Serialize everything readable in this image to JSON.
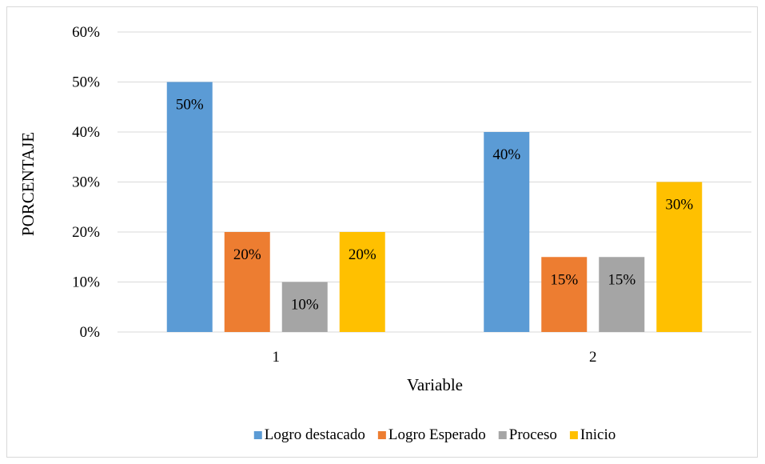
{
  "chart_data": {
    "type": "bar",
    "categories": [
      "1",
      "2"
    ],
    "series": [
      {
        "name": "Logro destacado",
        "values": [
          50,
          40
        ],
        "labels": [
          "50%",
          "40%"
        ],
        "color": "#5b9bd5"
      },
      {
        "name": "Logro Esperado",
        "values": [
          20,
          15
        ],
        "labels": [
          "20%",
          "15%"
        ],
        "color": "#ed7d31"
      },
      {
        "name": "Proceso",
        "values": [
          10,
          15
        ],
        "labels": [
          "10%",
          "15%"
        ],
        "color": "#a5a5a5"
      },
      {
        "name": "Inicio",
        "values": [
          20,
          30
        ],
        "labels": [
          "20%",
          "30%"
        ],
        "color": "#ffc000"
      }
    ],
    "xlabel": "Variable",
    "ylabel": "PORCENTAJE",
    "ylim": [
      0,
      60
    ],
    "yticks": [
      0,
      10,
      20,
      30,
      40,
      50,
      60
    ],
    "ytick_labels": [
      "0%",
      "10%",
      "20%",
      "30%",
      "40%",
      "50%",
      "60%"
    ],
    "grid": true,
    "legend_position": "bottom",
    "gridline_color": "#d9d9d9"
  }
}
